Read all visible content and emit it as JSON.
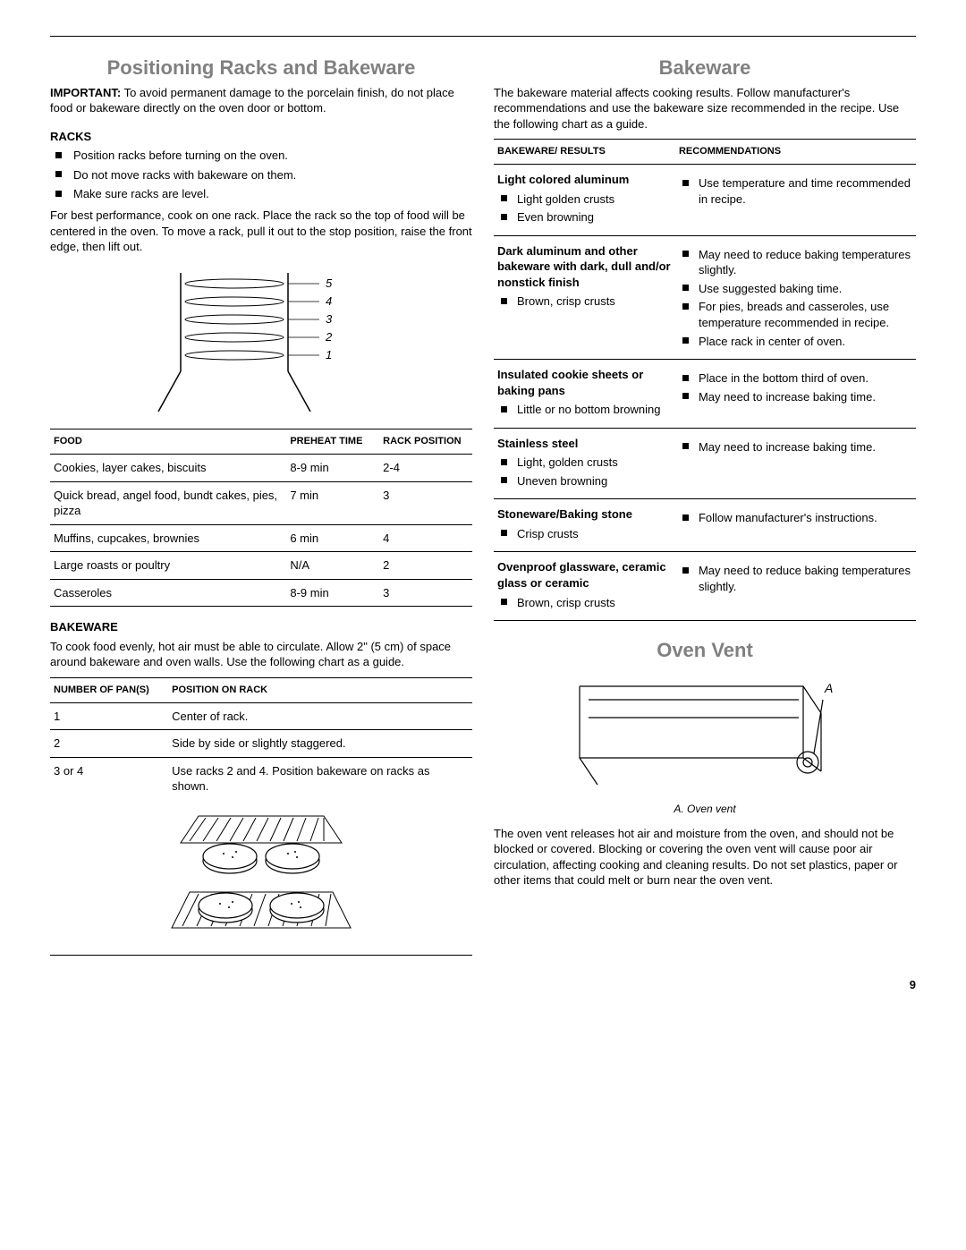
{
  "page_number": "9",
  "left": {
    "title": "Positioning Racks and Bakeware",
    "important_label": "IMPORTANT:",
    "important_text": " To avoid permanent damage to the porcelain finish, do not place food or bakeware directly on the oven door or bottom.",
    "racks_heading": "Racks",
    "racks_bullets": [
      "Position racks before turning on the oven.",
      "Do not move racks with bakeware on them.",
      "Make sure racks are level."
    ],
    "racks_para": "For best performance, cook on one rack. Place the rack so the top of food will be centered in the oven. To move a rack, pull it out to the stop position, raise the front edge, then lift out.",
    "rack_labels": [
      "5",
      "4",
      "3",
      "2",
      "1"
    ],
    "food_table": {
      "headers": [
        "Food",
        "Preheat Time",
        "Rack Position"
      ],
      "rows": [
        [
          "Cookies, layer cakes, biscuits",
          "8-9 min",
          "2-4"
        ],
        [
          "Quick bread, angel food, bundt cakes, pies, pizza",
          "7 min",
          "3"
        ],
        [
          "Muffins, cupcakes, brownies",
          "6 min",
          "4"
        ],
        [
          "Large roasts or poultry",
          "N/A",
          "2"
        ],
        [
          "Casseroles",
          "8-9 min",
          "3"
        ]
      ]
    },
    "bakeware_heading": "Bakeware",
    "bakeware_para": "To cook food evenly, hot air must be able to circulate. Allow 2\" (5 cm) of space around bakeware and oven walls. Use the following chart as a guide.",
    "pan_table": {
      "headers": [
        "Number of Pan(s)",
        "Position on Rack"
      ],
      "rows": [
        [
          "1",
          "Center of rack."
        ],
        [
          "2",
          "Side by side or slightly staggered."
        ],
        [
          "3 or 4",
          "Use racks 2 and 4. Position bakeware on racks as shown."
        ]
      ]
    }
  },
  "right": {
    "title": "Bakeware",
    "intro": "The bakeware material affects cooking results. Follow manufacturer's recommendations and use the bakeware size recommended in the recipe. Use the following chart as a guide.",
    "table_headers": [
      "Bakeware/ Results",
      "Recommendations"
    ],
    "rows": [
      {
        "head": "Light colored aluminum",
        "subs": [
          "Light golden crusts",
          "Even browning"
        ],
        "recs": [
          "Use temperature and time recommended in recipe."
        ]
      },
      {
        "head": "Dark aluminum and other bakeware with dark, dull and/or nonstick finish",
        "subs": [
          "Brown, crisp crusts"
        ],
        "recs": [
          "May need to reduce baking temperatures slightly.",
          "Use suggested baking time.",
          "For pies, breads and casseroles, use temperature recommended in recipe.",
          "Place rack in center of oven."
        ]
      },
      {
        "head": "Insulated cookie sheets or baking pans",
        "subs": [
          "Little or no bottom browning"
        ],
        "recs": [
          "Place in the bottom third of oven.",
          "May need to increase baking time."
        ]
      },
      {
        "head": "Stainless steel",
        "subs": [
          "Light, golden crusts",
          "Uneven browning"
        ],
        "recs": [
          "May need to increase baking time."
        ]
      },
      {
        "head": "Stoneware/Baking stone",
        "subs": [
          "Crisp crusts"
        ],
        "recs": [
          "Follow manufacturer's instructions."
        ]
      },
      {
        "head": "Ovenproof glassware, ceramic glass or ceramic",
        "subs": [
          "Brown, crisp crusts"
        ],
        "recs": [
          "May need to reduce baking temperatures slightly."
        ]
      }
    ],
    "oven_vent_title": "Oven Vent",
    "vent_label": "A",
    "vent_caption": "A. Oven vent",
    "vent_para": "The oven vent releases hot air and moisture from the oven, and should not be blocked or covered. Blocking or covering the oven vent will cause poor air circulation, affecting cooking and cleaning results. Do not set plastics, paper or other items that could melt or burn near the oven vent."
  }
}
